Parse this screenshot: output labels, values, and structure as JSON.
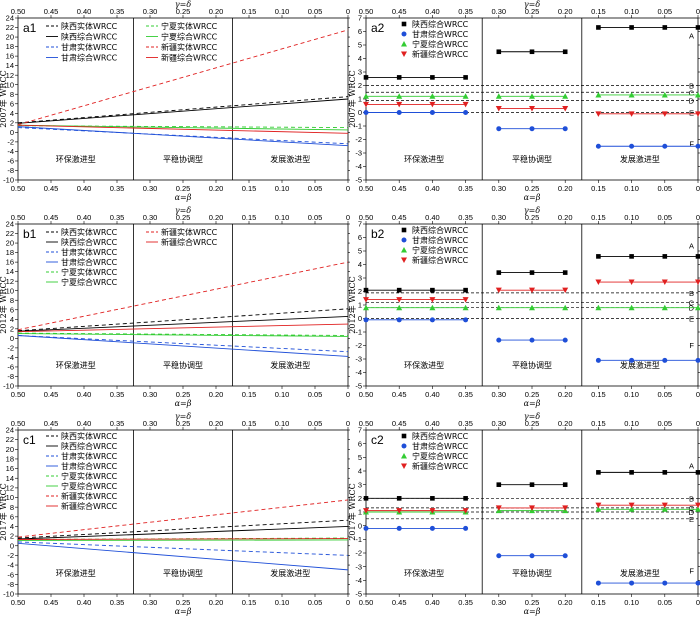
{
  "colors": {
    "black": "#000000",
    "blue": "#1f4fd8",
    "green": "#33cc33",
    "red": "#e02020"
  },
  "common": {
    "x_top_label": "γ=δ",
    "x_bottom_label": "α=β",
    "x_ticks": [
      0.5,
      0.45,
      0.4,
      0.35,
      0.3,
      0.25,
      0.2,
      0.15,
      0.1,
      0.05,
      0
    ],
    "x_tick_labels": [
      "0.50",
      "0.45",
      "0.40",
      "0.35",
      "0.30",
      "0.25",
      "0.20",
      "0.15",
      "0.10",
      "0.05",
      "0"
    ],
    "regions": [
      "环保激进型",
      "平稳协调型",
      "发展激进型"
    ],
    "region_bounds": [
      0.325,
      0.175
    ]
  },
  "chart_data": [
    {
      "panel": "a1",
      "type": "line",
      "ylabel": "2007年 WRCC",
      "ylim": [
        -10,
        24
      ],
      "yticks": [
        -10,
        -8,
        -6,
        -4,
        -2,
        0,
        2,
        4,
        6,
        8,
        10,
        12,
        14,
        16,
        18,
        20,
        22,
        24
      ],
      "x": [
        0.5,
        0
      ],
      "legend": [
        {
          "name": "陕西实体WRCC",
          "color": "black",
          "dash": true
        },
        {
          "name": "陕西综合WRCC",
          "color": "black",
          "dash": false
        },
        {
          "name": "甘肃实体WRCC",
          "color": "blue",
          "dash": true
        },
        {
          "name": "甘肃综合WRCC",
          "color": "blue",
          "dash": false
        },
        {
          "name": "宁夏实体WRCC",
          "color": "green",
          "dash": true
        },
        {
          "name": "宁夏综合WRCC",
          "color": "green",
          "dash": false
        },
        {
          "name": "新疆实体WRCC",
          "color": "red",
          "dash": true
        },
        {
          "name": "新疆综合WRCC",
          "color": "red",
          "dash": false
        }
      ],
      "series": [
        {
          "name": "陕西实体WRCC",
          "color": "black",
          "dash": true,
          "values": [
            2.0,
            7.5
          ]
        },
        {
          "name": "陕西综合WRCC",
          "color": "black",
          "dash": false,
          "values": [
            1.9,
            7.0
          ]
        },
        {
          "name": "甘肃实体WRCC",
          "color": "blue",
          "dash": true,
          "values": [
            1.0,
            -2.4
          ]
        },
        {
          "name": "甘肃综合WRCC",
          "color": "blue",
          "dash": false,
          "values": [
            1.2,
            -2.8
          ]
        },
        {
          "name": "宁夏实体WRCC",
          "color": "green",
          "dash": true,
          "values": [
            1.4,
            1.0
          ]
        },
        {
          "name": "宁夏综合WRCC",
          "color": "green",
          "dash": false,
          "values": [
            1.5,
            0.5
          ]
        },
        {
          "name": "新疆实体WRCC",
          "color": "red",
          "dash": true,
          "values": [
            1.6,
            21.5
          ]
        },
        {
          "name": "新疆综合WRCC",
          "color": "red",
          "dash": false,
          "values": [
            1.5,
            -0.2
          ]
        }
      ]
    },
    {
      "panel": "a2",
      "type": "scatter",
      "ylabel": "2007年 WRCC",
      "ylim": [
        -5,
        7
      ],
      "yticks": [
        -5,
        -4,
        -3,
        -2,
        -1,
        0,
        1,
        2,
        3,
        4,
        5,
        6,
        7
      ],
      "legend": [
        {
          "name": "陕西综合WRCC",
          "color": "black",
          "marker": "square"
        },
        {
          "name": "甘肃综合WRCC",
          "color": "blue",
          "marker": "circle"
        },
        {
          "name": "宁夏综合WRCC",
          "color": "green",
          "marker": "triangle"
        },
        {
          "name": "新疆综合WRCC",
          "color": "red",
          "marker": "tri-down"
        }
      ],
      "hlines": [
        {
          "y": 2.0,
          "label": "B"
        },
        {
          "y": 1.5,
          "label": "C"
        },
        {
          "y": 0.9,
          "label": "D"
        },
        {
          "y": 0.0,
          "label": "E"
        }
      ],
      "side_labels": [
        {
          "y": 5.5,
          "label": "A"
        },
        {
          "y": -2.5,
          "label": "F"
        }
      ],
      "groups": [
        {
          "x": [
            0.5,
            0.45,
            0.4,
            0.35
          ],
          "values": {
            "black": 2.6,
            "blue": 0.0,
            "green": 1.2,
            "red": 0.6
          }
        },
        {
          "x": [
            0.3,
            0.25,
            0.2
          ],
          "values": {
            "black": 4.5,
            "blue": -1.2,
            "green": 1.2,
            "red": 0.3
          }
        },
        {
          "x": [
            0.15,
            0.1,
            0.05,
            0
          ],
          "values": {
            "black": 6.3,
            "blue": -2.5,
            "green": 1.3,
            "red": -0.1
          }
        }
      ]
    },
    {
      "panel": "b1",
      "type": "line",
      "ylabel": "2012年 WRCC",
      "ylim": [
        -10,
        24
      ],
      "yticks": [
        -10,
        -8,
        -6,
        -4,
        -2,
        0,
        2,
        4,
        6,
        8,
        10,
        12,
        14,
        16,
        18,
        20,
        22,
        24
      ],
      "x": [
        0.5,
        0
      ],
      "legend": [
        {
          "name": "陕西实体WRCC",
          "color": "black",
          "dash": true
        },
        {
          "name": "陕西综合WRCC",
          "color": "black",
          "dash": false
        },
        {
          "name": "甘肃实体WRCC",
          "color": "blue",
          "dash": true
        },
        {
          "name": "甘肃综合WRCC",
          "color": "blue",
          "dash": false
        },
        {
          "name": "宁夏实体WRCC",
          "color": "green",
          "dash": true
        },
        {
          "name": "宁夏综合WRCC",
          "color": "green",
          "dash": false
        },
        {
          "name": "新疆实体WRCC",
          "color": "red",
          "dash": true
        },
        {
          "name": "新疆综合WRCC",
          "color": "red",
          "dash": false
        }
      ],
      "series": [
        {
          "name": "陕西实体WRCC",
          "color": "black",
          "dash": true,
          "values": [
            1.6,
            6.2
          ]
        },
        {
          "name": "陕西综合WRCC",
          "color": "black",
          "dash": false,
          "values": [
            1.5,
            4.6
          ]
        },
        {
          "name": "甘肃实体WRCC",
          "color": "blue",
          "dash": true,
          "values": [
            0.6,
            -2.8
          ]
        },
        {
          "name": "甘肃综合WRCC",
          "color": "blue",
          "dash": false,
          "values": [
            0.6,
            -3.8
          ]
        },
        {
          "name": "宁夏实体WRCC",
          "color": "green",
          "dash": true,
          "values": [
            1.1,
            0.6
          ]
        },
        {
          "name": "宁夏综合WRCC",
          "color": "green",
          "dash": false,
          "values": [
            1.0,
            0.4
          ]
        },
        {
          "name": "新疆实体WRCC",
          "color": "red",
          "dash": true,
          "values": [
            1.8,
            16.0
          ]
        },
        {
          "name": "新疆综合WRCC",
          "color": "red",
          "dash": false,
          "values": [
            1.4,
            3.0
          ]
        }
      ]
    },
    {
      "panel": "b2",
      "type": "scatter",
      "ylabel": "2012年 WRCC",
      "ylim": [
        -5,
        7
      ],
      "yticks": [
        -5,
        -4,
        -3,
        -2,
        -1,
        0,
        1,
        2,
        3,
        4,
        5,
        6,
        7
      ],
      "legend": [
        {
          "name": "陕西综合WRCC",
          "color": "black",
          "marker": "square"
        },
        {
          "name": "甘肃综合WRCC",
          "color": "blue",
          "marker": "circle"
        },
        {
          "name": "宁夏综合WRCC",
          "color": "green",
          "marker": "triangle"
        },
        {
          "name": "新疆综合WRCC",
          "color": "red",
          "marker": "tri-down"
        }
      ],
      "hlines": [
        {
          "y": 1.9,
          "label": "B"
        },
        {
          "y": 1.2,
          "label": "C"
        },
        {
          "y": 0.8,
          "label": "D"
        },
        {
          "y": 0.0,
          "label": "E"
        }
      ],
      "side_labels": [
        {
          "y": 5.2,
          "label": "A"
        },
        {
          "y": -2.2,
          "label": "F"
        }
      ],
      "groups": [
        {
          "x": [
            0.5,
            0.45,
            0.4,
            0.35
          ],
          "values": {
            "black": 2.1,
            "blue": -0.1,
            "green": 0.8,
            "red": 1.4
          }
        },
        {
          "x": [
            0.3,
            0.25,
            0.2
          ],
          "values": {
            "black": 3.4,
            "blue": -1.6,
            "green": 0.8,
            "red": 2.1
          }
        },
        {
          "x": [
            0.15,
            0.1,
            0.05,
            0
          ],
          "values": {
            "black": 4.6,
            "blue": -3.1,
            "green": 0.8,
            "red": 2.7
          }
        }
      ]
    },
    {
      "panel": "c1",
      "type": "line",
      "ylabel": "2017年 WRCC",
      "ylim": [
        -10,
        24
      ],
      "yticks": [
        -10,
        -8,
        -6,
        -4,
        -2,
        0,
        2,
        4,
        6,
        8,
        10,
        12,
        14,
        16,
        18,
        20,
        22,
        24
      ],
      "x": [
        0.5,
        0
      ],
      "legend": [
        {
          "name": "陕西实体WRCC",
          "color": "black",
          "dash": true
        },
        {
          "name": "陕西综合WRCC",
          "color": "black",
          "dash": false
        },
        {
          "name": "甘肃实体WRCC",
          "color": "blue",
          "dash": true
        },
        {
          "name": "甘肃综合WRCC",
          "color": "blue",
          "dash": false
        },
        {
          "name": "宁夏实体WRCC",
          "color": "green",
          "dash": true
        },
        {
          "name": "宁夏综合WRCC",
          "color": "green",
          "dash": false
        },
        {
          "name": "新疆实体WRCC",
          "color": "red",
          "dash": true
        },
        {
          "name": "新疆综合WRCC",
          "color": "red",
          "dash": false
        }
      ],
      "series": [
        {
          "name": "陕西实体WRCC",
          "color": "black",
          "dash": true,
          "values": [
            1.6,
            5.3
          ]
        },
        {
          "name": "陕西综合WRCC",
          "color": "black",
          "dash": false,
          "values": [
            1.4,
            4.0
          ]
        },
        {
          "name": "甘肃实体WRCC",
          "color": "blue",
          "dash": true,
          "values": [
            0.8,
            -2.0
          ]
        },
        {
          "name": "甘肃综合WRCC",
          "color": "blue",
          "dash": false,
          "values": [
            0.5,
            -5.0
          ]
        },
        {
          "name": "宁夏实体WRCC",
          "color": "green",
          "dash": true,
          "values": [
            1.3,
            1.6
          ]
        },
        {
          "name": "宁夏综合WRCC",
          "color": "green",
          "dash": false,
          "values": [
            1.1,
            1.2
          ]
        },
        {
          "name": "新疆实体WRCC",
          "color": "red",
          "dash": true,
          "values": [
            1.8,
            9.5
          ]
        },
        {
          "name": "新疆综合WRCC",
          "color": "red",
          "dash": false,
          "values": [
            1.3,
            1.5
          ]
        }
      ]
    },
    {
      "panel": "c2",
      "type": "scatter",
      "ylabel": "2017年 WRCC",
      "ylim": [
        -5,
        7
      ],
      "yticks": [
        -5,
        -4,
        -3,
        -2,
        -1,
        0,
        1,
        2,
        3,
        4,
        5,
        6,
        7
      ],
      "legend": [
        {
          "name": "陕西综合WRCC",
          "color": "black",
          "marker": "square"
        },
        {
          "name": "甘肃综合WRCC",
          "color": "blue",
          "marker": "circle"
        },
        {
          "name": "宁夏综合WRCC",
          "color": "green",
          "marker": "triangle"
        },
        {
          "name": "新疆综合WRCC",
          "color": "red",
          "marker": "tri-down"
        }
      ],
      "hlines": [
        {
          "y": 2.0,
          "label": "B"
        },
        {
          "y": 1.3,
          "label": "C"
        },
        {
          "y": 1.0,
          "label": "D"
        },
        {
          "y": 0.5,
          "label": "E"
        }
      ],
      "side_labels": [
        {
          "y": 4.2,
          "label": "A"
        },
        {
          "y": -3.5,
          "label": "F"
        }
      ],
      "groups": [
        {
          "x": [
            0.5,
            0.45,
            0.4,
            0.35
          ],
          "values": {
            "black": 2.0,
            "blue": -0.2,
            "green": 1.0,
            "red": 1.1
          }
        },
        {
          "x": [
            0.3,
            0.25,
            0.2
          ],
          "values": {
            "black": 3.0,
            "blue": -2.2,
            "green": 1.1,
            "red": 1.3
          }
        },
        {
          "x": [
            0.15,
            0.1,
            0.05,
            0
          ],
          "values": {
            "black": 3.9,
            "blue": -4.2,
            "green": 1.2,
            "red": 1.5
          }
        }
      ]
    }
  ]
}
